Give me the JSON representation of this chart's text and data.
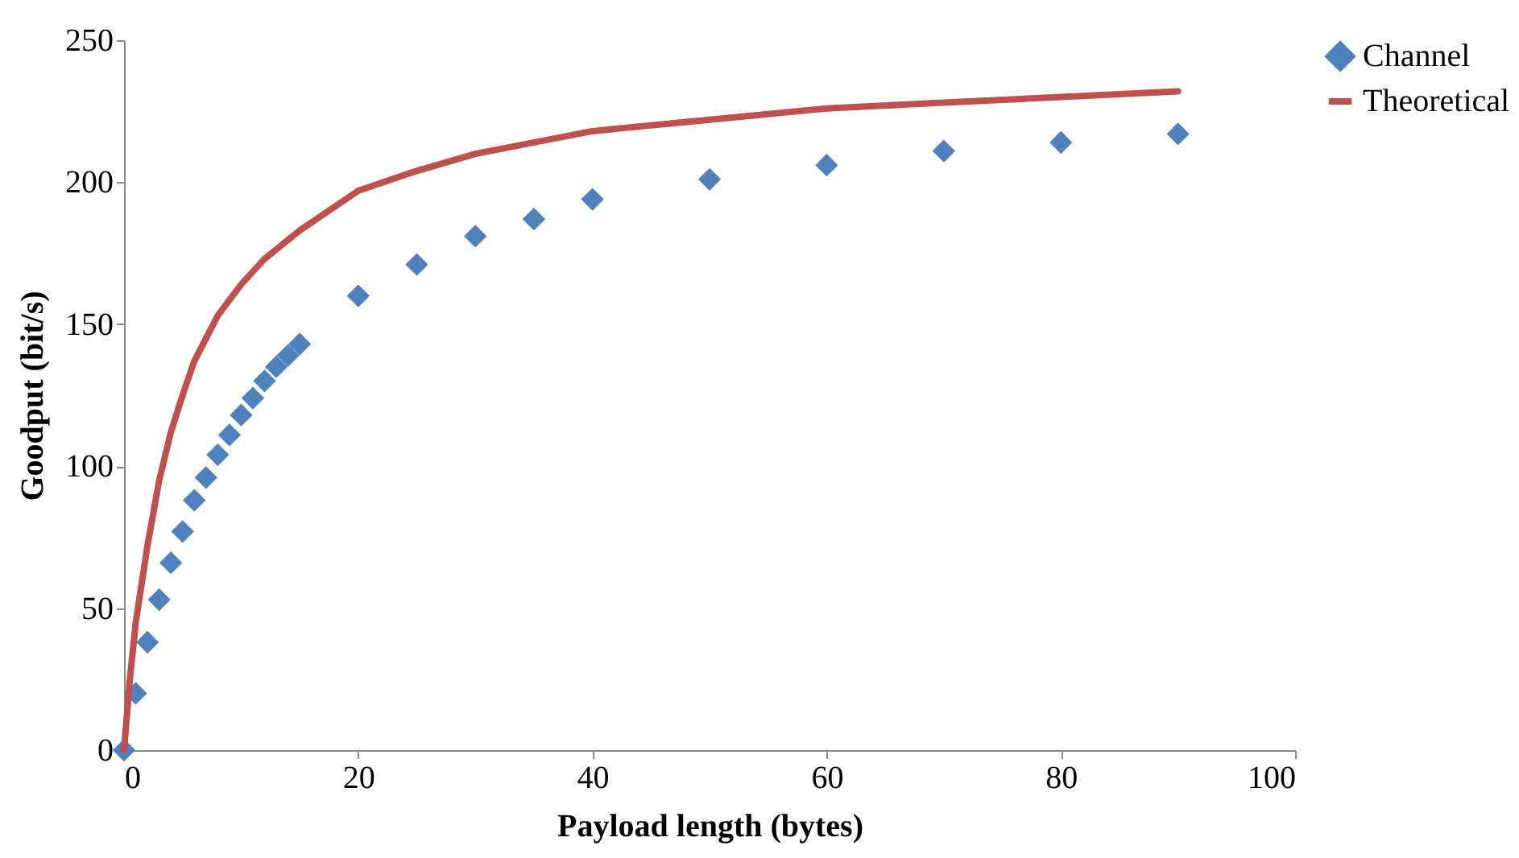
{
  "chart_data": {
    "type": "scatter",
    "xlabel": "Payload length (bytes)",
    "ylabel": "Goodput (bit/s)",
    "xlim": [
      0,
      100
    ],
    "xticks": [
      0,
      20,
      40,
      60,
      80,
      100
    ],
    "ylim": [
      0,
      250
    ],
    "yticks": [
      0,
      50,
      100,
      150,
      200,
      250
    ],
    "grid": false,
    "legend": "right",
    "series": [
      {
        "name": "Channel",
        "type": "scatter",
        "marker": "diamond",
        "color": "#4f81bd",
        "x": [
          0,
          1,
          2,
          3,
          4,
          5,
          6,
          7,
          8,
          9,
          10,
          11,
          12,
          13,
          14,
          15,
          20,
          25,
          30,
          35,
          40,
          50,
          60,
          70,
          80,
          90
        ],
        "values": [
          0,
          20,
          38,
          53,
          66,
          77,
          88,
          96,
          104,
          111,
          118,
          124,
          130,
          135,
          139,
          143,
          160,
          171,
          181,
          187,
          194,
          201,
          206,
          211,
          214,
          217
        ]
      },
      {
        "name": "Theoretical",
        "type": "line",
        "marker": "none",
        "line_style": "solid",
        "color": "#c0504d",
        "x": [
          0,
          0.5,
          1,
          2,
          3,
          4,
          5,
          6,
          8,
          10,
          12,
          15,
          20,
          25,
          30,
          40,
          50,
          60,
          70,
          80,
          90
        ],
        "values": [
          0,
          25,
          45,
          72,
          95,
          112,
          125,
          137,
          153,
          164,
          173,
          183,
          197,
          204,
          210,
          218,
          222,
          226,
          228,
          230,
          232
        ]
      }
    ]
  }
}
